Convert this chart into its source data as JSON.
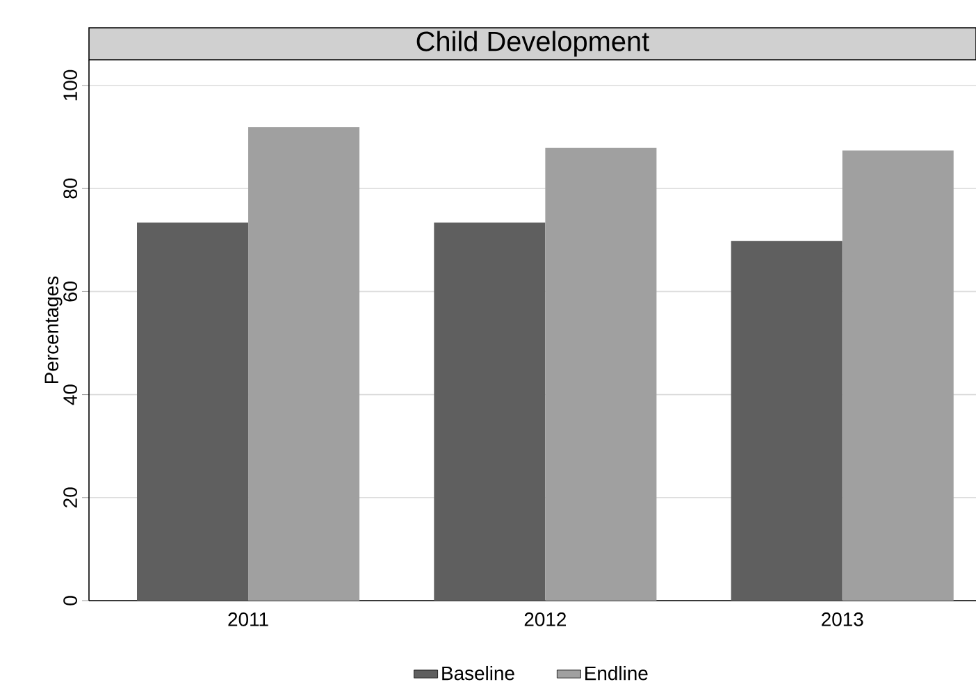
{
  "chart_data": {
    "type": "bar",
    "title": "Child Development",
    "ylabel": "Percentages",
    "categories": [
      "2011",
      "2012",
      "2013"
    ],
    "series": [
      {
        "name": "Baseline",
        "color": "#5f5f5f",
        "values": [
          73.4,
          73.4,
          69.8
        ]
      },
      {
        "name": "Endline",
        "color": "#a0a0a0",
        "values": [
          91.9,
          87.9,
          87.4
        ]
      }
    ],
    "ylim": [
      0,
      105
    ],
    "yticks": [
      0,
      20,
      40,
      60,
      80,
      100
    ],
    "grid": "y",
    "legend": "bottom"
  }
}
